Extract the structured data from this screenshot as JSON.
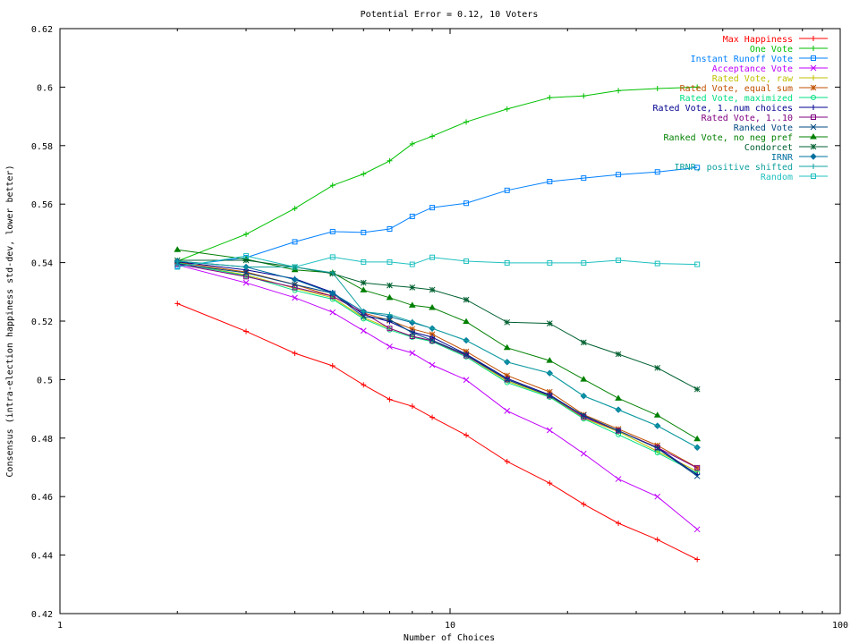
{
  "chart_data": {
    "type": "line",
    "title": "Potential Error = 0.12, 10 Voters",
    "xlabel": "Number of Choices",
    "ylabel": "Consensus (intra-election happiness std-dev, lower better)",
    "xscale": "log",
    "xlim": [
      1,
      100
    ],
    "ylim": [
      0.42,
      0.62
    ],
    "x_ticks": [
      1,
      10,
      100
    ],
    "y_ticks": [
      0.42,
      0.44,
      0.46,
      0.48,
      0.5,
      0.52,
      0.54,
      0.56,
      0.58,
      0.6,
      0.62
    ],
    "legend_position": "top-right",
    "grid": false,
    "x": [
      2,
      3,
      4,
      5,
      6,
      7,
      8,
      9,
      11,
      14,
      18,
      22,
      27,
      34,
      43
    ],
    "series": [
      {
        "name": "Max Happiness",
        "color": "#ff0000",
        "marker": "plus",
        "values": [
          0.526,
          0.5165,
          0.509,
          0.5047,
          0.4982,
          0.4932,
          0.4909,
          0.4871,
          0.481,
          0.472,
          0.4646,
          0.4574,
          0.4509,
          0.4453,
          0.4385
        ]
      },
      {
        "name": "One Vote",
        "color": "#00c000",
        "marker": "plus",
        "values": [
          0.5405,
          0.5497,
          0.5585,
          0.5664,
          0.5703,
          0.5748,
          0.5806,
          0.5832,
          0.5881,
          0.5925,
          0.5964,
          0.597,
          0.5988,
          0.5995,
          0.6
        ]
      },
      {
        "name": "Instant Runoff Vote",
        "color": "#0080ff",
        "marker": "box",
        "values": [
          0.5388,
          0.5417,
          0.5471,
          0.5506,
          0.5503,
          0.5515,
          0.5558,
          0.5588,
          0.5603,
          0.5647,
          0.5677,
          0.5689,
          0.5701,
          0.571,
          0.5725
        ]
      },
      {
        "name": "Acceptance Vote",
        "color": "#c000ff",
        "marker": "x",
        "values": [
          0.5392,
          0.5331,
          0.528,
          0.523,
          0.5167,
          0.5113,
          0.5091,
          0.505,
          0.4999,
          0.4893,
          0.4827,
          0.4747,
          0.466,
          0.46,
          0.4488
        ]
      },
      {
        "name": "Rated Vote, raw",
        "color": "#c0c000",
        "marker": "plus",
        "values": [
          0.5398,
          0.5358,
          0.5312,
          0.528,
          0.5212,
          0.5175,
          0.5148,
          0.5132,
          0.5082,
          0.4995,
          0.4943,
          0.4868,
          0.4822,
          0.4755,
          0.4686
        ]
      },
      {
        "name": "Rated Vote, equal sum",
        "color": "#c05000",
        "marker": "star",
        "values": [
          0.5401,
          0.5368,
          0.5325,
          0.5285,
          0.5228,
          0.5202,
          0.5173,
          0.5155,
          0.5096,
          0.5014,
          0.4958,
          0.488,
          0.4831,
          0.4775,
          0.4699
        ]
      },
      {
        "name": "Rated Vote, maximized",
        "color": "#00e080",
        "marker": "circle",
        "values": [
          0.5399,
          0.5355,
          0.5305,
          0.5275,
          0.5208,
          0.517,
          0.5145,
          0.513,
          0.5078,
          0.499,
          0.494,
          0.4866,
          0.4812,
          0.475,
          0.468
        ]
      },
      {
        "name": "Rated Vote, 1..num choices",
        "color": "#000090",
        "marker": "plus",
        "values": [
          0.5403,
          0.5375,
          0.5345,
          0.5298,
          0.5222,
          0.5198,
          0.5163,
          0.5145,
          0.5087,
          0.5004,
          0.4948,
          0.4876,
          0.4825,
          0.4768,
          0.4675
        ]
      },
      {
        "name": "Rated Vote, 1..10",
        "color": "#800080",
        "marker": "box",
        "values": [
          0.5395,
          0.5352,
          0.5315,
          0.5285,
          0.5228,
          0.5175,
          0.5148,
          0.5133,
          0.5082,
          0.5,
          0.4945,
          0.4872,
          0.4825,
          0.4768,
          0.4698
        ]
      },
      {
        "name": "Ranked Vote",
        "color": "#004880",
        "marker": "x",
        "values": [
          0.5396,
          0.5365,
          0.5325,
          0.5295,
          0.5215,
          0.5205,
          0.516,
          0.5135,
          0.5085,
          0.5,
          0.4945,
          0.4878,
          0.4825,
          0.4765,
          0.467
        ]
      },
      {
        "name": "Ranked Vote, no neg pref",
        "color": "#008000",
        "marker": "triangle",
        "values": [
          0.5444,
          0.5412,
          0.5375,
          0.5365,
          0.5306,
          0.528,
          0.5254,
          0.5246,
          0.5198,
          0.5109,
          0.5065,
          0.5001,
          0.4936,
          0.4878,
          0.4797
        ]
      },
      {
        "name": "Condorcet",
        "color": "#006030",
        "marker": "star",
        "values": [
          0.5408,
          0.5408,
          0.5385,
          0.5362,
          0.5331,
          0.5322,
          0.5315,
          0.5307,
          0.5273,
          0.5196,
          0.5192,
          0.5127,
          0.5087,
          0.504,
          0.4967
        ]
      },
      {
        "name": "IRNR",
        "color": "#0070a0",
        "marker": "diamond",
        "values": [
          0.5405,
          0.5385,
          0.5342,
          0.5295,
          0.5232,
          0.5215,
          0.5195,
          0.5175,
          0.5134,
          0.506,
          0.5022,
          0.4944,
          0.4897,
          0.4842,
          0.4768
        ]
      },
      {
        "name": "IRNR, positive shifted",
        "color": "#10a0a0",
        "marker": "plus",
        "values": [
          0.5405,
          0.5385,
          0.5385,
          0.5365,
          0.5232,
          0.5222,
          0.5198,
          0.5175,
          0.5134,
          0.506,
          0.5022,
          0.4944,
          0.4897,
          0.4842,
          0.4768
        ]
      },
      {
        "name": "Random",
        "color": "#20c0c0",
        "marker": "box",
        "values": [
          0.5385,
          0.5423,
          0.5385,
          0.5419,
          0.5402,
          0.5402,
          0.5394,
          0.5418,
          0.5405,
          0.5399,
          0.5399,
          0.5399,
          0.5408,
          0.5397,
          0.5394
        ]
      }
    ]
  }
}
